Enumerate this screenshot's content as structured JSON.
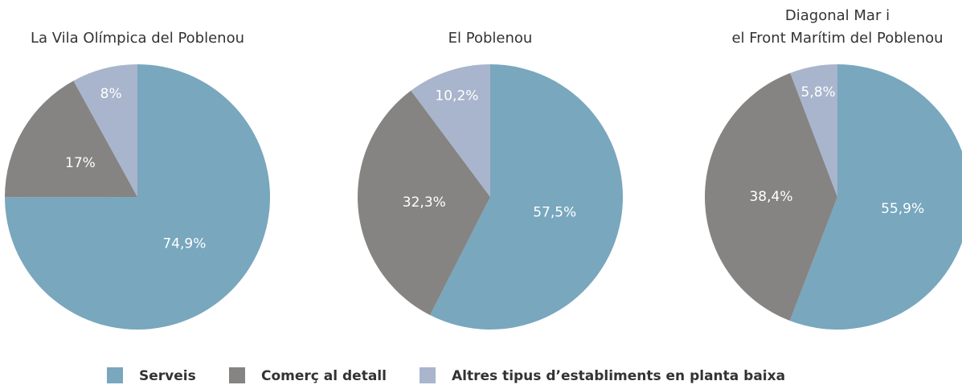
{
  "chart_data": [
    {
      "type": "pie",
      "title": "La Vila Olímpica del Poblenou",
      "categories": [
        "Serveis",
        "Comerç al detall",
        "Altres tipus d’establiments en planta baixa"
      ],
      "values": [
        74.9,
        17,
        8
      ],
      "value_labels": [
        "74,9%",
        "17%",
        "8%"
      ],
      "colors": [
        "#78a7be",
        "#858482",
        "#a8b5cc"
      ]
    },
    {
      "type": "pie",
      "title": "El Poblenou",
      "categories": [
        "Serveis",
        "Comerç al detall",
        "Altres tipus d’establiments en planta baixa"
      ],
      "values": [
        57.5,
        32.3,
        10.2
      ],
      "value_labels": [
        "57,5%",
        "32,3%",
        "10,2%"
      ],
      "colors": [
        "#78a7be",
        "#858482",
        "#a8b5cc"
      ]
    },
    {
      "type": "pie",
      "title": [
        "Diagonal Mar i",
        "el Front Marítim del Poblenou"
      ],
      "categories": [
        "Serveis",
        "Comerç al detall",
        "Altres tipus d’establiments en planta baixa"
      ],
      "values": [
        55.9,
        38.4,
        5.8
      ],
      "value_labels": [
        "55,9%",
        "38,4%",
        "5,8%"
      ],
      "colors": [
        "#78a7be",
        "#858482",
        "#a8b5cc"
      ]
    }
  ]
}
